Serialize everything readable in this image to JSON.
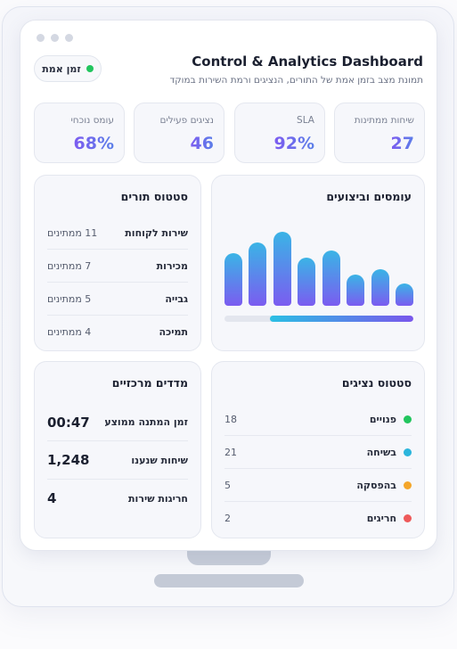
{
  "header": {
    "title": "Control & Analytics Dashboard",
    "subtitle": "תמונת מצב בזמן אמת של התורים, הנציגים ורמת השירות במוקד",
    "live_label": "זמן אמת",
    "live_color": "#22c55e"
  },
  "stats": [
    {
      "label": "שיחות ממתינות",
      "value": "27"
    },
    {
      "label": "SLA",
      "value": "92%"
    },
    {
      "label": "נציגים פעילים",
      "value": "46"
    },
    {
      "label": "עומס נוכחי",
      "value": "68%"
    }
  ],
  "load_card": {
    "title": "עומסים וביצועים",
    "bar_levels": [
      0.69,
      0.83,
      0.97,
      0.63,
      0.72,
      0.41,
      0.48,
      0.29
    ],
    "progress": 0.76
  },
  "queue_card": {
    "title": "סטטוס תורים",
    "rows": [
      {
        "name": "שירות לקוחות",
        "count": "11 ממתינים"
      },
      {
        "name": "מכירות",
        "count": "7 ממתינים"
      },
      {
        "name": "גבייה",
        "count": "5 ממתינים"
      },
      {
        "name": "תמיכה",
        "count": "4 ממתינים"
      }
    ]
  },
  "agents_card": {
    "title": "סטטוס נציגים",
    "rows": [
      {
        "name": "פנויים",
        "count": "18",
        "color": "#22c55e"
      },
      {
        "name": "בשיחה",
        "count": "21",
        "color": "#2bb5dc"
      },
      {
        "name": "בהפסקה",
        "count": "5",
        "color": "#f4a62a"
      },
      {
        "name": "חריגים",
        "count": "2",
        "color": "#ee5a5a"
      }
    ]
  },
  "kpi_card": {
    "title": "מדדים מרכזיים",
    "rows": [
      {
        "name": "זמן המתנה ממוצע",
        "value": "00:47"
      },
      {
        "name": "שיחות שנענו",
        "value": "1,248"
      },
      {
        "name": "חריגות שירות",
        "value": "4"
      }
    ]
  }
}
